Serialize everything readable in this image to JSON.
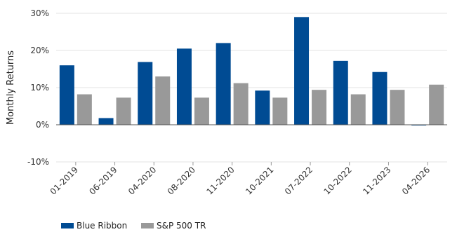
{
  "chart_data": {
    "type": "bar",
    "ylabel": "Monthly Returns",
    "xlabel": "",
    "ylim": [
      -10,
      30
    ],
    "yticks": [
      -10,
      0,
      10,
      20,
      30
    ],
    "ytick_labels": [
      "-10%",
      "0%",
      "10%",
      "20%",
      "30%"
    ],
    "grid": true,
    "legend_position": "bottom-left",
    "categories": [
      "01-2019",
      "06-2019",
      "04-2020",
      "08-2020",
      "11-2020",
      "10-2021",
      "07-2022",
      "10-2022",
      "11-2023",
      "04-2026"
    ],
    "series": [
      {
        "name": "Blue Ribbon",
        "color": "#004B93",
        "values": [
          16.0,
          1.8,
          16.9,
          20.5,
          22.0,
          9.2,
          29.0,
          17.2,
          14.2,
          -0.2
        ]
      },
      {
        "name": "S&P 500 TR",
        "color": "#999999",
        "values": [
          8.2,
          7.3,
          13.0,
          7.3,
          11.2,
          7.3,
          9.4,
          8.2,
          9.4,
          10.8
        ]
      }
    ]
  }
}
